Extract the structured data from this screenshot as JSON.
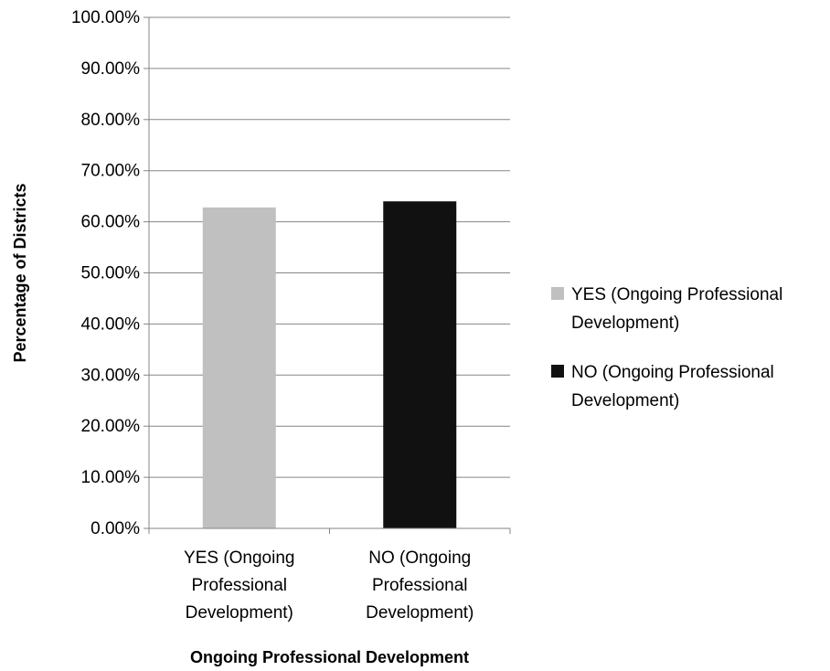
{
  "chart_data": {
    "type": "bar",
    "title": "",
    "xlabel": "Ongoing Professional Development",
    "ylabel": "Percentage of Districts",
    "ylim": [
      0,
      100
    ],
    "ytick_step": 10,
    "ytick_labels": [
      "0.00%",
      "10.00%",
      "20.00%",
      "30.00%",
      "40.00%",
      "50.00%",
      "60.00%",
      "70.00%",
      "80.00%",
      "90.00%",
      "100.00%"
    ],
    "grid": true,
    "legend_position": "right",
    "categories": [
      [
        "YES (Ongoing",
        "Professional",
        "Development)"
      ],
      [
        "NO (Ongoing",
        "Professional",
        "Development)"
      ]
    ],
    "values": [
      62.8,
      64.0
    ],
    "colors": [
      "#c0c0c0",
      "#111111"
    ],
    "legend": [
      {
        "lines": [
          "YES (Ongoing Professional",
          "Development)"
        ],
        "color": "#c0c0c0"
      },
      {
        "lines": [
          "NO (Ongoing Professional",
          "Development)"
        ],
        "color": "#111111"
      }
    ]
  }
}
